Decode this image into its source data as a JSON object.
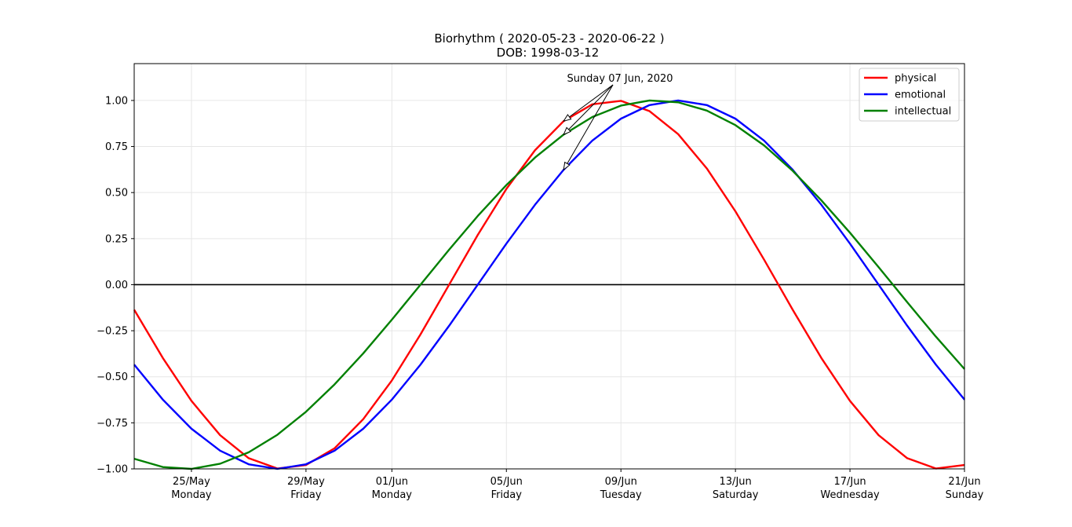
{
  "chart_data": {
    "type": "line",
    "title": "Biorhythm ( 2020-05-23 - 2020-06-22 )",
    "subtitle": "DOB: 1998-03-12",
    "xlabel": "",
    "ylabel": "",
    "xlim": [
      "2020-05-23",
      "2020-06-21"
    ],
    "ylim": [
      -1.0,
      1.2
    ],
    "grid": true,
    "legend_placement": "top-right",
    "x": [
      "2020-05-23",
      "2020-05-24",
      "2020-05-25",
      "2020-05-26",
      "2020-05-27",
      "2020-05-28",
      "2020-05-29",
      "2020-05-30",
      "2020-05-31",
      "2020-06-01",
      "2020-06-02",
      "2020-06-03",
      "2020-06-04",
      "2020-06-05",
      "2020-06-06",
      "2020-06-07",
      "2020-06-08",
      "2020-06-09",
      "2020-06-10",
      "2020-06-11",
      "2020-06-12",
      "2020-06-13",
      "2020-06-14",
      "2020-06-15",
      "2020-06-16",
      "2020-06-17",
      "2020-06-18",
      "2020-06-19",
      "2020-06-20",
      "2020-06-21"
    ],
    "series": [
      {
        "name": "physical",
        "color": "#ff0000",
        "values": [
          -0.136,
          -0.398,
          -0.631,
          -0.817,
          -0.942,
          -0.998,
          -0.979,
          -0.888,
          -0.73,
          -0.52,
          -0.27,
          0.0,
          0.27,
          0.52,
          0.73,
          0.888,
          0.979,
          0.998,
          0.942,
          0.817,
          0.631,
          0.398,
          0.136,
          -0.136,
          -0.398,
          -0.631,
          -0.817,
          -0.942,
          -0.998,
          -0.979
        ]
      },
      {
        "name": "emotional",
        "color": "#0000ff",
        "values": [
          -0.434,
          -0.624,
          -0.782,
          -0.901,
          -0.975,
          -1.0,
          -0.975,
          -0.901,
          -0.782,
          -0.624,
          -0.434,
          -0.223,
          0.0,
          0.223,
          0.434,
          0.624,
          0.782,
          0.901,
          0.975,
          1.0,
          0.975,
          0.901,
          0.782,
          0.624,
          0.434,
          0.223,
          0.0,
          -0.223,
          -0.434,
          -0.624
        ]
      },
      {
        "name": "intellectual",
        "color": "#008000",
        "values": [
          -0.945,
          -0.99,
          -1.0,
          -0.972,
          -0.91,
          -0.815,
          -0.69,
          -0.541,
          -0.373,
          -0.19,
          0.0,
          0.19,
          0.373,
          0.541,
          0.69,
          0.815,
          0.91,
          0.972,
          1.0,
          0.99,
          0.945,
          0.866,
          0.756,
          0.618,
          0.458,
          0.282,
          0.095,
          -0.095,
          -0.282,
          -0.458
        ]
      }
    ],
    "zero_line": 0.0,
    "y_ticks": [
      "−1.00",
      "−0.75",
      "−0.50",
      "−0.25",
      "0.00",
      "0.25",
      "0.50",
      "0.75",
      "1.00"
    ],
    "x_ticks": [
      {
        "date": "2020-05-25",
        "label": "25/May",
        "weekday": "Monday"
      },
      {
        "date": "2020-05-29",
        "label": "29/May",
        "weekday": "Friday"
      },
      {
        "date": "2020-06-01",
        "label": "01/Jun",
        "weekday": "Monday"
      },
      {
        "date": "2020-06-05",
        "label": "05/Jun",
        "weekday": "Friday"
      },
      {
        "date": "2020-06-09",
        "label": "09/Jun",
        "weekday": "Tuesday"
      },
      {
        "date": "2020-06-13",
        "label": "13/Jun",
        "weekday": "Saturday"
      },
      {
        "date": "2020-06-17",
        "label": "17/Jun",
        "weekday": "Wednesday"
      },
      {
        "date": "2020-06-21",
        "label": "21/Jun",
        "weekday": "Sunday"
      }
    ],
    "annotation": {
      "text": "Sunday 07 Jun, 2020",
      "date": "2020-06-07"
    }
  }
}
